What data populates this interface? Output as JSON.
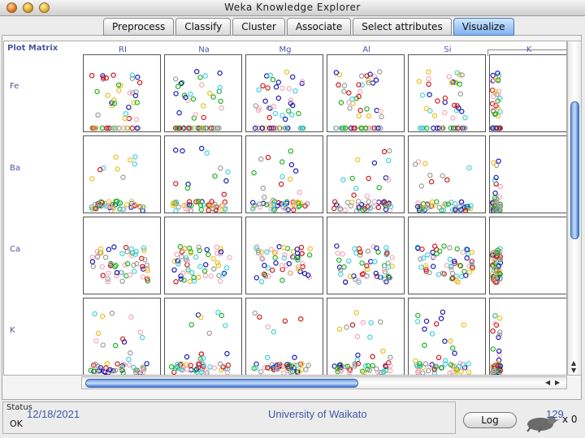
{
  "window": {
    "title": "Weka Knowledge Explorer"
  },
  "tabs": [
    {
      "label": "Preprocess",
      "active": false
    },
    {
      "label": "Classify",
      "active": false
    },
    {
      "label": "Cluster",
      "active": false
    },
    {
      "label": "Associate",
      "active": false
    },
    {
      "label": "Select attributes",
      "active": false
    },
    {
      "label": "Visualize",
      "active": true
    }
  ],
  "plot_matrix": {
    "corner_label": "Plot Matrix",
    "column_attributes": [
      "RI",
      "Na",
      "Mg",
      "Al",
      "Si",
      "K"
    ],
    "row_attributes": [
      "Fe",
      "Ba",
      "Ca",
      "K"
    ],
    "class_colors": [
      "#1a1ab4",
      "#d01818",
      "#20b020",
      "#9a9a9a",
      "#40d0e0",
      "#f0a8b8",
      "#e8c020"
    ]
  },
  "status": {
    "label": "Status",
    "text": "OK"
  },
  "log_button": {
    "label": "Log"
  },
  "x_count": "x 0",
  "overlay": {
    "date": "12/18/2021",
    "university": "University of Waikato",
    "page": "129"
  }
}
